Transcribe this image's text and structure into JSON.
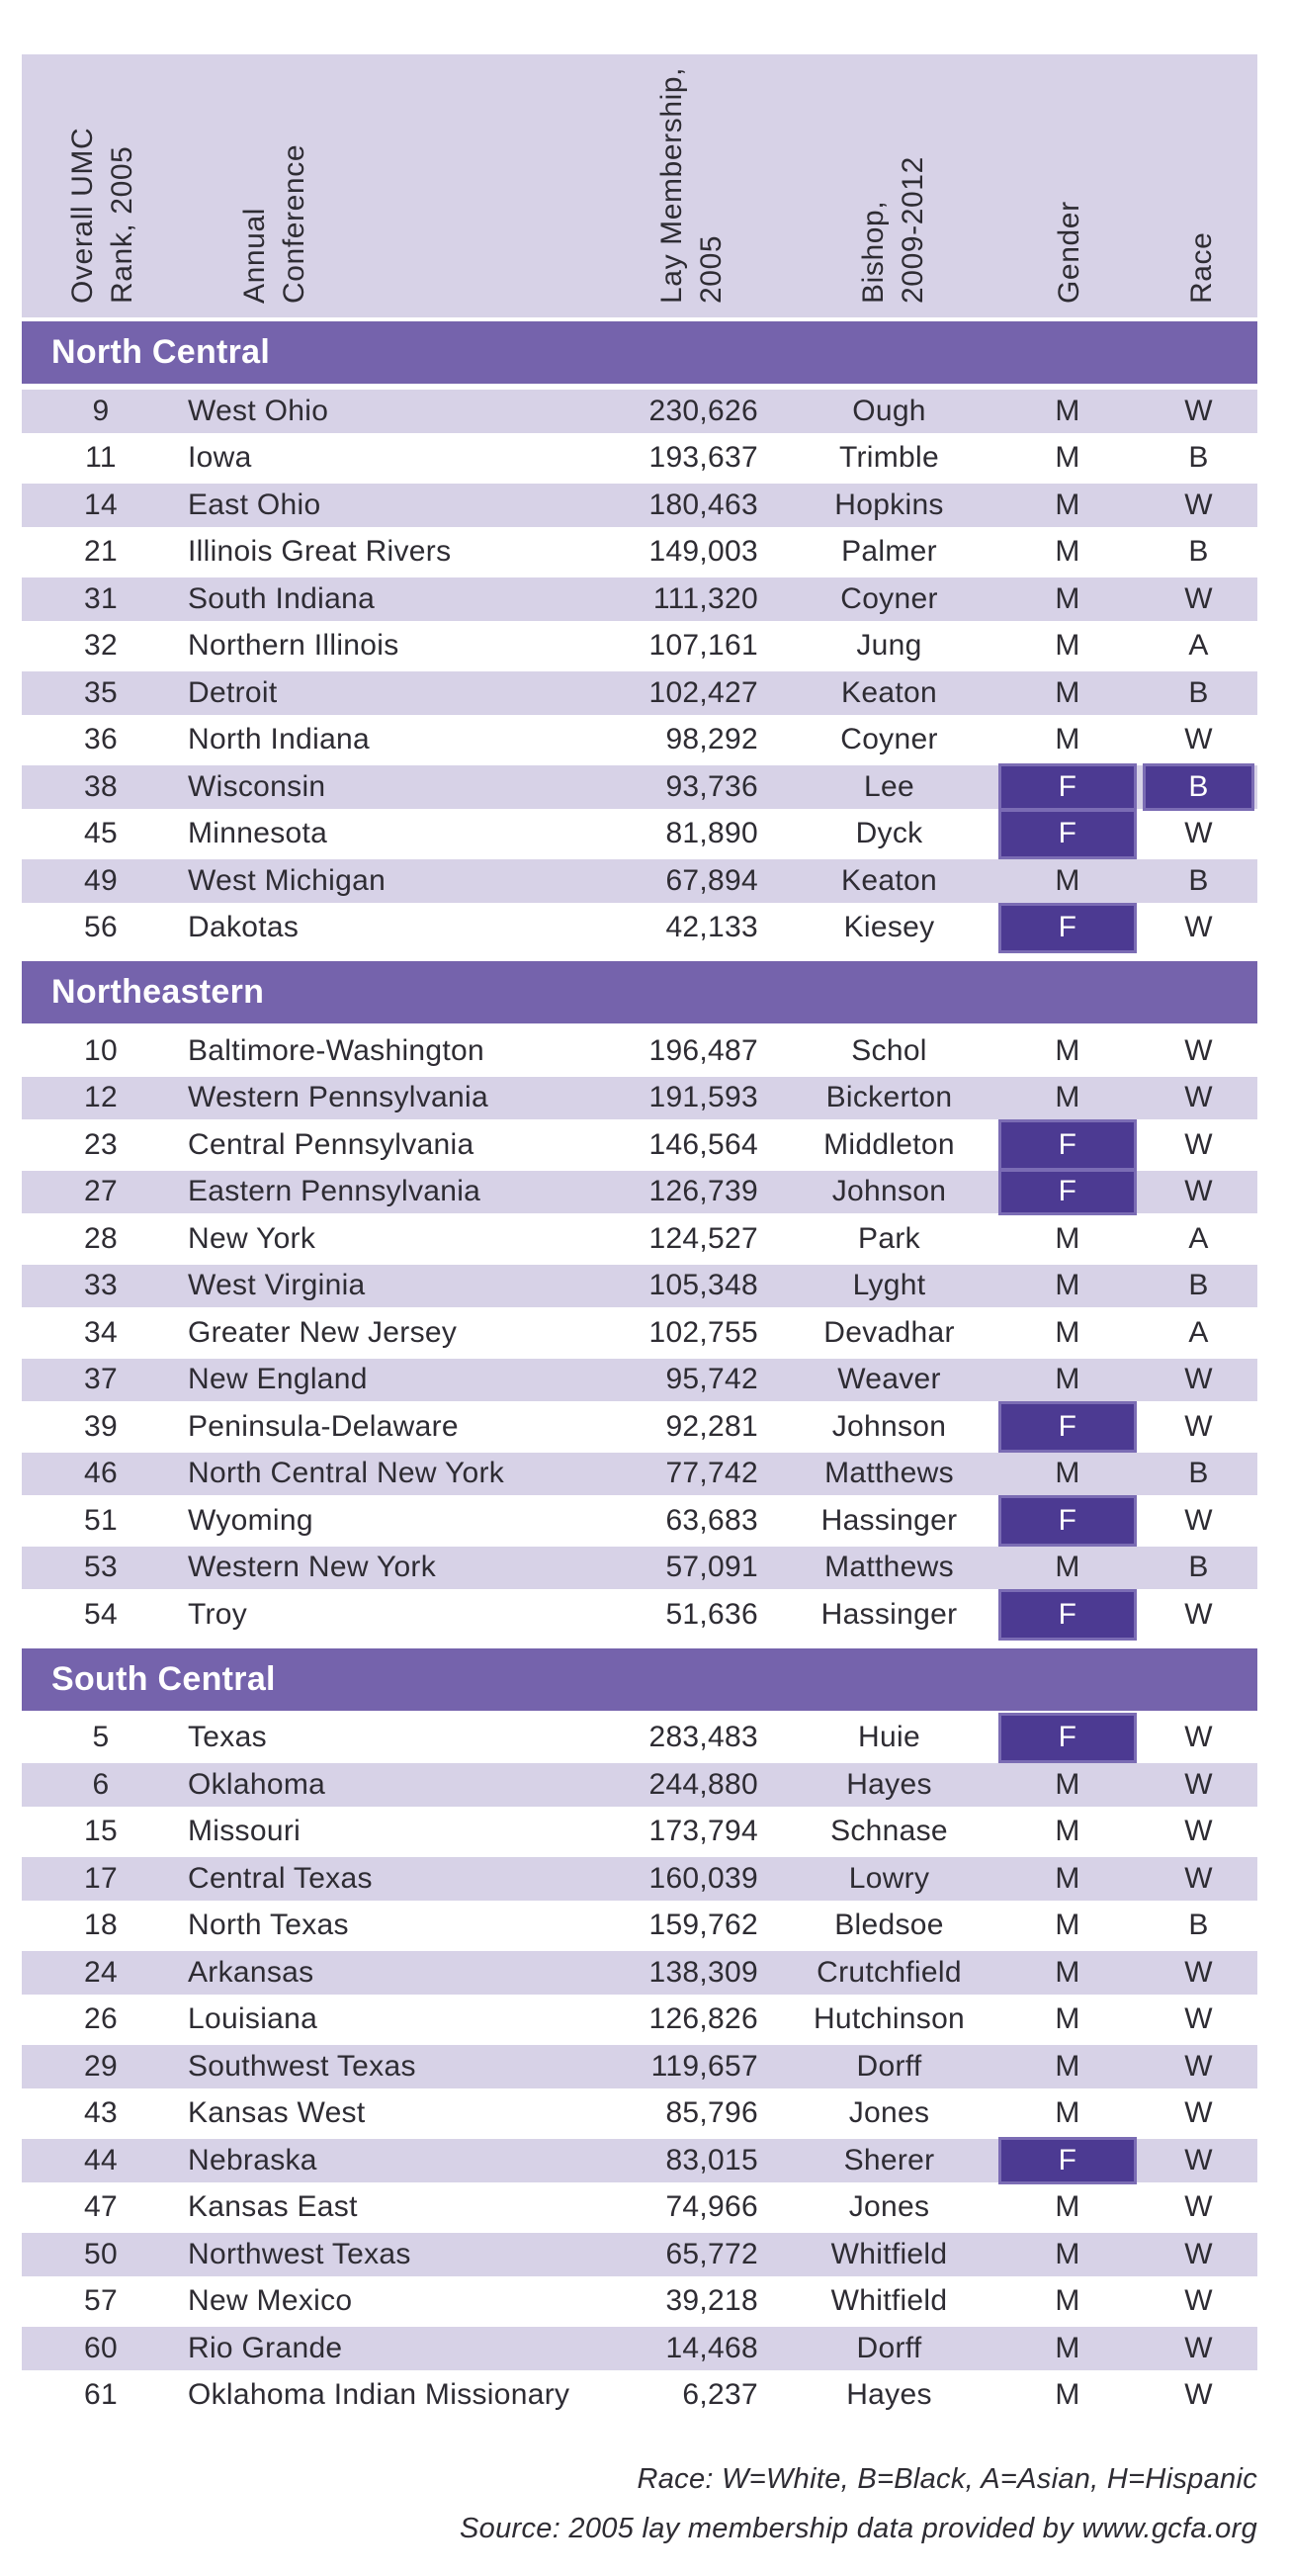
{
  "table": {
    "columns": [
      {
        "id": "rank",
        "label": "Overall UMC\nRank, 2005"
      },
      {
        "id": "conference",
        "label": "Annual\nConference"
      },
      {
        "id": "membership",
        "label": "Lay Membership,\n2005"
      },
      {
        "id": "bishop",
        "label": "Bishop,\n2009-2012"
      },
      {
        "id": "gender",
        "label": "Gender"
      },
      {
        "id": "race",
        "label": "Race"
      }
    ],
    "sections": [
      {
        "name": "North Central",
        "first_row_shaded": true,
        "rows": [
          {
            "rank": "9",
            "conference": "West Ohio",
            "membership": "230,626",
            "bishop": "Ough",
            "gender": "M",
            "race": "W",
            "gender_highlighted": false,
            "race_highlighted": false
          },
          {
            "rank": "11",
            "conference": "Iowa",
            "membership": "193,637",
            "bishop": "Trimble",
            "gender": "M",
            "race": "B",
            "gender_highlighted": false,
            "race_highlighted": false
          },
          {
            "rank": "14",
            "conference": "East Ohio",
            "membership": "180,463",
            "bishop": "Hopkins",
            "gender": "M",
            "race": "W",
            "gender_highlighted": false,
            "race_highlighted": false
          },
          {
            "rank": "21",
            "conference": "Illinois Great Rivers",
            "membership": "149,003",
            "bishop": "Palmer",
            "gender": "M",
            "race": "B",
            "gender_highlighted": false,
            "race_highlighted": false
          },
          {
            "rank": "31",
            "conference": "South Indiana",
            "membership": "111,320",
            "bishop": "Coyner",
            "gender": "M",
            "race": "W",
            "gender_highlighted": false,
            "race_highlighted": false
          },
          {
            "rank": "32",
            "conference": "Northern Illinois",
            "membership": "107,161",
            "bishop": "Jung",
            "gender": "M",
            "race": "A",
            "gender_highlighted": false,
            "race_highlighted": false
          },
          {
            "rank": "35",
            "conference": "Detroit",
            "membership": "102,427",
            "bishop": "Keaton",
            "gender": "M",
            "race": "B",
            "gender_highlighted": false,
            "race_highlighted": false
          },
          {
            "rank": "36",
            "conference": "North Indiana",
            "membership": "98,292",
            "bishop": "Coyner",
            "gender": "M",
            "race": "W",
            "gender_highlighted": false,
            "race_highlighted": false
          },
          {
            "rank": "38",
            "conference": "Wisconsin",
            "membership": "93,736",
            "bishop": "Lee",
            "gender": "F",
            "race": "B",
            "gender_highlighted": true,
            "race_highlighted": true
          },
          {
            "rank": "45",
            "conference": "Minnesota",
            "membership": "81,890",
            "bishop": "Dyck",
            "gender": "F",
            "race": "W",
            "gender_highlighted": true,
            "race_highlighted": false
          },
          {
            "rank": "49",
            "conference": "West Michigan",
            "membership": "67,894",
            "bishop": "Keaton",
            "gender": "M",
            "race": "B",
            "gender_highlighted": false,
            "race_highlighted": false
          },
          {
            "rank": "56",
            "conference": "Dakotas",
            "membership": "42,133",
            "bishop": "Kiesey",
            "gender": "F",
            "race": "W",
            "gender_highlighted": true,
            "race_highlighted": false
          }
        ]
      },
      {
        "name": "Northeastern",
        "first_row_shaded": false,
        "rows": [
          {
            "rank": "10",
            "conference": "Baltimore-Washington",
            "membership": "196,487",
            "bishop": "Schol",
            "gender": "M",
            "race": "W",
            "gender_highlighted": false,
            "race_highlighted": false
          },
          {
            "rank": "12",
            "conference": "Western Pennsylvania",
            "membership": "191,593",
            "bishop": "Bickerton",
            "gender": "M",
            "race": "W",
            "gender_highlighted": false,
            "race_highlighted": false
          },
          {
            "rank": "23",
            "conference": "Central Pennsylvania",
            "membership": "146,564",
            "bishop": "Middleton",
            "gender": "F",
            "race": "W",
            "gender_highlighted": true,
            "race_highlighted": false
          },
          {
            "rank": "27",
            "conference": "Eastern Pennsylvania",
            "membership": "126,739",
            "bishop": "Johnson",
            "gender": "F",
            "race": "W",
            "gender_highlighted": true,
            "race_highlighted": false
          },
          {
            "rank": "28",
            "conference": "New York",
            "membership": "124,527",
            "bishop": "Park",
            "gender": "M",
            "race": "A",
            "gender_highlighted": false,
            "race_highlighted": false
          },
          {
            "rank": "33",
            "conference": "West Virginia",
            "membership": "105,348",
            "bishop": "Lyght",
            "gender": "M",
            "race": "B",
            "gender_highlighted": false,
            "race_highlighted": false
          },
          {
            "rank": "34",
            "conference": "Greater New Jersey",
            "membership": "102,755",
            "bishop": "Devadhar",
            "gender": "M",
            "race": "A",
            "gender_highlighted": false,
            "race_highlighted": false
          },
          {
            "rank": "37",
            "conference": "New England",
            "membership": "95,742",
            "bishop": "Weaver",
            "gender": "M",
            "race": "W",
            "gender_highlighted": false,
            "race_highlighted": false
          },
          {
            "rank": "39",
            "conference": "Peninsula-Delaware",
            "membership": "92,281",
            "bishop": "Johnson",
            "gender": "F",
            "race": "W",
            "gender_highlighted": true,
            "race_highlighted": false
          },
          {
            "rank": "46",
            "conference": "North Central New York",
            "membership": "77,742",
            "bishop": "Matthews",
            "gender": "M",
            "race": "B",
            "gender_highlighted": false,
            "race_highlighted": false
          },
          {
            "rank": "51",
            "conference": "Wyoming",
            "membership": "63,683",
            "bishop": "Hassinger",
            "gender": "F",
            "race": "W",
            "gender_highlighted": true,
            "race_highlighted": false
          },
          {
            "rank": "53",
            "conference": "Western New York",
            "membership": "57,091",
            "bishop": "Matthews",
            "gender": "M",
            "race": "B",
            "gender_highlighted": false,
            "race_highlighted": false
          },
          {
            "rank": "54",
            "conference": "Troy",
            "membership": "51,636",
            "bishop": "Hassinger",
            "gender": "F",
            "race": "W",
            "gender_highlighted": true,
            "race_highlighted": false
          }
        ]
      },
      {
        "name": "South Central",
        "first_row_shaded": false,
        "rows": [
          {
            "rank": "5",
            "conference": "Texas",
            "membership": "283,483",
            "bishop": "Huie",
            "gender": "F",
            "race": "W",
            "gender_highlighted": true,
            "race_highlighted": false
          },
          {
            "rank": "6",
            "conference": "Oklahoma",
            "membership": "244,880",
            "bishop": "Hayes",
            "gender": "M",
            "race": "W",
            "gender_highlighted": false,
            "race_highlighted": false
          },
          {
            "rank": "15",
            "conference": "Missouri",
            "membership": "173,794",
            "bishop": "Schnase",
            "gender": "M",
            "race": "W",
            "gender_highlighted": false,
            "race_highlighted": false
          },
          {
            "rank": "17",
            "conference": "Central Texas",
            "membership": "160,039",
            "bishop": "Lowry",
            "gender": "M",
            "race": "W",
            "gender_highlighted": false,
            "race_highlighted": false
          },
          {
            "rank": "18",
            "conference": "North Texas",
            "membership": "159,762",
            "bishop": "Bledsoe",
            "gender": "M",
            "race": "B",
            "gender_highlighted": false,
            "race_highlighted": false
          },
          {
            "rank": "24",
            "conference": "Arkansas",
            "membership": "138,309",
            "bishop": "Crutchfield",
            "gender": "M",
            "race": "W",
            "gender_highlighted": false,
            "race_highlighted": false
          },
          {
            "rank": "26",
            "conference": "Louisiana",
            "membership": "126,826",
            "bishop": "Hutchinson",
            "gender": "M",
            "race": "W",
            "gender_highlighted": false,
            "race_highlighted": false
          },
          {
            "rank": "29",
            "conference": "Southwest Texas",
            "membership": "119,657",
            "bishop": "Dorff",
            "gender": "M",
            "race": "W",
            "gender_highlighted": false,
            "race_highlighted": false
          },
          {
            "rank": "43",
            "conference": "Kansas West",
            "membership": "85,796",
            "bishop": "Jones",
            "gender": "M",
            "race": "W",
            "gender_highlighted": false,
            "race_highlighted": false
          },
          {
            "rank": "44",
            "conference": "Nebraska",
            "membership": "83,015",
            "bishop": "Sherer",
            "gender": "F",
            "race": "W",
            "gender_highlighted": true,
            "race_highlighted": false
          },
          {
            "rank": "47",
            "conference": "Kansas East",
            "membership": "74,966",
            "bishop": "Jones",
            "gender": "M",
            "race": "W",
            "gender_highlighted": false,
            "race_highlighted": false
          },
          {
            "rank": "50",
            "conference": "Northwest Texas",
            "membership": "65,772",
            "bishop": "Whitfield",
            "gender": "M",
            "race": "W",
            "gender_highlighted": false,
            "race_highlighted": false
          },
          {
            "rank": "57",
            "conference": "New Mexico",
            "membership": "39,218",
            "bishop": "Whitfield",
            "gender": "M",
            "race": "W",
            "gender_highlighted": false,
            "race_highlighted": false
          },
          {
            "rank": "60",
            "conference": "Rio Grande",
            "membership": "14,468",
            "bishop": "Dorff",
            "gender": "M",
            "race": "W",
            "gender_highlighted": false,
            "race_highlighted": false
          },
          {
            "rank": "61",
            "conference": "Oklahoma Indian Missionary",
            "membership": "6,237",
            "bishop": "Hayes",
            "gender": "M",
            "race": "W",
            "gender_highlighted": false,
            "race_highlighted": false
          }
        ]
      }
    ]
  },
  "footnotes": {
    "race_legend": "Race: W=White, B=Black, A=Asian, H=Hispanic",
    "source": "Source: 2005 lay membership data provided by www.gcfa.org"
  },
  "colors": {
    "band_purple": "#7563ac",
    "row_lavender": "#d7d2e7",
    "header_lavender": "#d7d2e7",
    "highlight_fill": "#4c3a92",
    "highlight_border": "#7b6cb4",
    "text_dark": "#2e2c33",
    "text_on_purple": "#ffffff"
  }
}
